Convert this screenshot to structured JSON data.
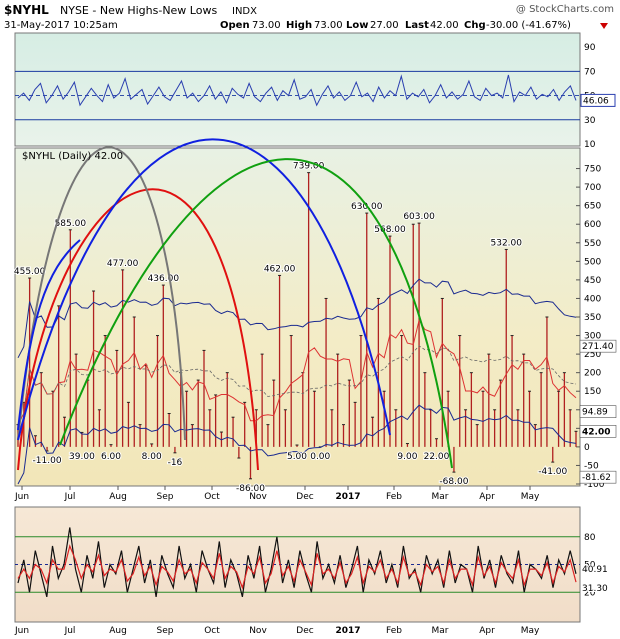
{
  "header": {
    "symbol": "$NYHL",
    "name": "NYSE - New Highs-New Lows",
    "exchange": "INDX",
    "date": "31-May-2017 10:25am",
    "watermark": "@ StockCharts.com",
    "open_label": "Open",
    "open": "73.00",
    "high_label": "High",
    "high": "73.00",
    "low_label": "Low",
    "low": "27.00",
    "last_label": "Last",
    "last": "42.00",
    "chg_label": "Chg",
    "chg": "-30.00 (-41.67%)"
  },
  "chart_data": [
    {
      "type": "line",
      "panel": "top-indicator",
      "ylim": [
        10,
        100
      ],
      "yticks": [
        10,
        30,
        50,
        70,
        90
      ],
      "guide_lines": [
        70,
        30
      ],
      "center_line": 50,
      "current_label": "46.06",
      "values": [
        48,
        52,
        46,
        55,
        60,
        44,
        50,
        58,
        47,
        53,
        61,
        42,
        49,
        56,
        50,
        45,
        59,
        48,
        52,
        64,
        47,
        51,
        55,
        43,
        50,
        57,
        49,
        46,
        54,
        62,
        48,
        52,
        45,
        50,
        58,
        47,
        53,
        44,
        56,
        51,
        48,
        60,
        49,
        45,
        52,
        57,
        46,
        54,
        50,
        63,
        47,
        49,
        55,
        42,
        51,
        58,
        48,
        53,
        46,
        50,
        61,
        49,
        52,
        45,
        57,
        48,
        54,
        50,
        66,
        47,
        52,
        49,
        55,
        44,
        50,
        59,
        48,
        53,
        47,
        51,
        62,
        49,
        46,
        56,
        50,
        52,
        48,
        67,
        45,
        53,
        50,
        57,
        47,
        51,
        49,
        55,
        46,
        53,
        58,
        46
      ]
    },
    {
      "type": "bar",
      "panel": "main",
      "series_label": "$NYHL (Daily) 42.00",
      "ylim": [
        -100,
        800
      ],
      "yticks": [
        -100,
        -50,
        0,
        50,
        100,
        150,
        200,
        250,
        300,
        350,
        400,
        450,
        500,
        550,
        600,
        650,
        700,
        750
      ],
      "months": [
        "Jun",
        "Jul",
        "Aug",
        "Sep",
        "Oct",
        "Nov",
        "Dec",
        "2017",
        "Feb",
        "Mar",
        "Apr",
        "May"
      ],
      "peak_labels": [
        "455.00",
        "585.00",
        "477.00",
        "436.00",
        "462.00",
        "739.00",
        "630.00",
        "568.00",
        "603.00",
        "532.00"
      ],
      "trough_labels": [
        "-11.00",
        "39.00",
        "6.00",
        "8.00",
        "-16",
        "-86.00",
        "5.00",
        "0.00",
        "9.00",
        "22.00",
        "-68.00",
        "-41.00"
      ],
      "right_labels": [
        "271.40",
        "94.89",
        "42.00",
        "-81.62"
      ],
      "values": [
        60,
        120,
        455,
        30,
        200,
        -11,
        150,
        380,
        80,
        585,
        250,
        39,
        180,
        420,
        100,
        300,
        6,
        260,
        477,
        120,
        350,
        60,
        220,
        8,
        300,
        436,
        90,
        -16,
        200,
        150,
        60,
        180,
        260,
        100,
        140,
        40,
        200,
        80,
        -30,
        120,
        -86,
        100,
        250,
        60,
        180,
        462,
        100,
        300,
        5,
        200,
        739,
        150,
        0,
        400,
        100,
        250,
        60,
        180,
        120,
        300,
        630,
        80,
        400,
        150,
        568,
        100,
        300,
        9,
        600,
        603,
        200,
        100,
        22,
        400,
        150,
        -68,
        300,
        100,
        200,
        60,
        150,
        250,
        100,
        180,
        532,
        300,
        100,
        250,
        150,
        60,
        200,
        350,
        -41,
        150,
        200,
        100,
        42
      ]
    },
    {
      "type": "line",
      "panel": "bottom-indicator",
      "ylim": [
        -10,
        110
      ],
      "yticks": [
        20,
        50,
        80
      ],
      "guide_lines": [
        80,
        50,
        20
      ],
      "current_labels": [
        "40.91",
        "31.30"
      ],
      "fast_values": [
        30,
        55,
        20,
        65,
        40,
        15,
        70,
        35,
        50,
        90,
        45,
        20,
        60,
        35,
        75,
        25,
        50,
        40,
        65,
        20,
        45,
        70,
        30,
        55,
        15,
        60,
        40,
        25,
        70,
        35,
        50,
        20,
        65,
        45,
        30,
        75,
        25,
        55,
        40,
        15,
        60,
        35,
        70,
        20,
        45,
        80,
        30,
        55,
        25,
        65,
        40,
        20,
        75,
        35,
        50,
        30,
        60,
        25,
        45,
        70,
        20,
        55,
        40,
        65,
        30,
        50,
        25,
        70,
        35,
        45,
        20,
        60,
        40,
        55,
        25,
        65,
        30,
        50,
        45,
        20,
        70,
        35,
        55,
        25,
        60,
        40,
        30,
        65,
        20,
        50,
        45,
        35,
        60,
        25,
        55,
        40,
        65,
        40
      ],
      "slow_values": [
        35,
        45,
        35,
        50,
        45,
        30,
        55,
        45,
        45,
        70,
        55,
        35,
        50,
        42,
        60,
        38,
        45,
        42,
        55,
        32,
        40,
        58,
        38,
        48,
        28,
        48,
        42,
        32,
        55,
        40,
        45,
        30,
        52,
        45,
        35,
        62,
        35,
        48,
        42,
        25,
        48,
        40,
        58,
        30,
        40,
        65,
        38,
        48,
        32,
        55,
        42,
        28,
        62,
        40,
        45,
        35,
        52,
        30,
        40,
        58,
        30,
        48,
        42,
        55,
        35,
        45,
        30,
        58,
        38,
        42,
        28,
        50,
        42,
        48,
        30,
        55,
        35,
        45,
        45,
        28,
        58,
        38,
        48,
        30,
        52,
        42,
        35,
        55,
        28,
        45,
        45,
        38,
        52,
        30,
        48,
        42,
        55,
        31
      ]
    }
  ]
}
